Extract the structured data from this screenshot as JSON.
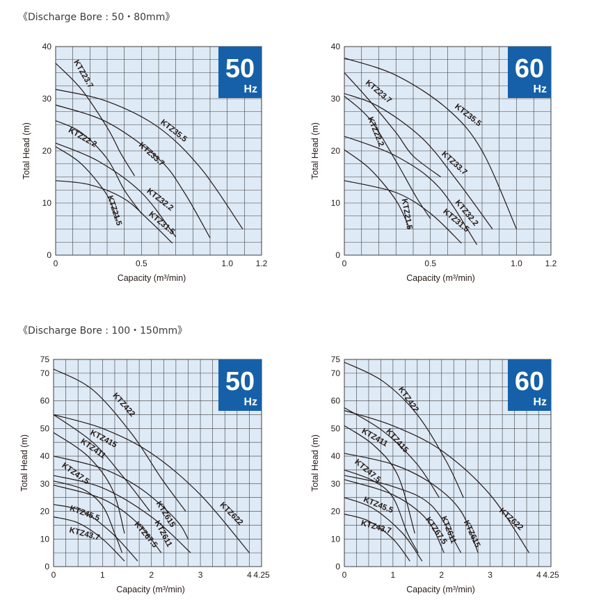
{
  "sections": [
    {
      "title": "《Discharge Bore : 50・80mm》"
    },
    {
      "title": "《Discharge Bore : 100・150mm》"
    }
  ],
  "colors": {
    "plot_bg": "#deeaf6",
    "grid": "#3c3c3c",
    "badge": "#1560a8",
    "curve": "#231815"
  },
  "chart_data": [
    {
      "type": "line",
      "badge": {
        "value": "50",
        "unit": "Hz"
      },
      "xlabel": "Capacity (m³/min)",
      "ylabel": "Total Head (m)",
      "xlim": [
        0,
        1.2
      ],
      "ylim": [
        0,
        40
      ],
      "x_ticks": [
        "0",
        "0.5",
        "1.0",
        "1.2"
      ],
      "x_tick_values": [
        0,
        0.5,
        1.0,
        1.2
      ],
      "y_ticks": [
        "0",
        "10",
        "20",
        "30",
        "40"
      ],
      "y_tick_values": [
        0,
        10,
        20,
        30,
        40
      ],
      "x_grid_step": 0.1,
      "y_grid_step": 2.5,
      "series": [
        {
          "name": "KTZ23.7",
          "points": [
            [
              0,
              36.8
            ],
            [
              0.15,
              31.8
            ],
            [
              0.3,
              24.5
            ],
            [
              0.38,
              19.5
            ],
            [
              0.46,
              15.2
            ]
          ],
          "label_at": [
            0.15,
            34.5
          ],
          "label_angle": 60
        },
        {
          "name": "KTZ35.5",
          "points": [
            [
              0,
              31.8
            ],
            [
              0.3,
              29.5
            ],
            [
              0.6,
              24.5
            ],
            [
              0.85,
              16.5
            ],
            [
              1.09,
              5.0
            ]
          ],
          "label_at": [
            0.68,
            23.5
          ],
          "label_angle": 38
        },
        {
          "name": "KTZ33.7",
          "points": [
            [
              0,
              28.8
            ],
            [
              0.3,
              25.5
            ],
            [
              0.6,
              18.5
            ],
            [
              0.75,
              12.0
            ],
            [
              0.9,
              3.3
            ]
          ],
          "label_at": [
            0.55,
            19.0
          ],
          "label_angle": 42
        },
        {
          "name": "KTZ22.2",
          "points": [
            [
              0,
              25.8
            ],
            [
              0.15,
              23.5
            ],
            [
              0.3,
              18.5
            ],
            [
              0.4,
              12.5
            ],
            [
              0.5,
              8.0
            ]
          ],
          "label_at": [
            0.15,
            22.2
          ],
          "label_angle": 30
        },
        {
          "name": "KTZ32.2",
          "points": [
            [
              0,
              21.5
            ],
            [
              0.25,
              18.0
            ],
            [
              0.5,
              12.0
            ],
            [
              0.7,
              3.5
            ]
          ],
          "label_at": [
            0.6,
            10.3
          ],
          "label_angle": 38
        },
        {
          "name": "KTZ21.5",
          "points": [
            [
              0,
              20.8
            ],
            [
              0.15,
              17.5
            ],
            [
              0.3,
              11.5
            ],
            [
              0.36,
              6.5
            ]
          ],
          "label_at": [
            0.33,
            8.4
          ],
          "label_angle": 72
        },
        {
          "name": "KTZ31.5",
          "points": [
            [
              0,
              14.3
            ],
            [
              0.2,
              13.5
            ],
            [
              0.4,
              10.8
            ],
            [
              0.55,
              6.5
            ],
            [
              0.68,
              2.3
            ]
          ],
          "label_at": [
            0.61,
            5.8
          ],
          "label_angle": 40
        }
      ]
    },
    {
      "type": "line",
      "badge": {
        "value": "60",
        "unit": "Hz"
      },
      "xlabel": "Capacity (m³/min)",
      "ylabel": "Total Head (m)",
      "xlim": [
        0,
        1.2
      ],
      "ylim": [
        0,
        40
      ],
      "x_ticks": [
        "0",
        "0.5",
        "1.0",
        "1.2"
      ],
      "x_tick_values": [
        0,
        0.5,
        1.0,
        1.2
      ],
      "y_ticks": [
        "0",
        "10",
        "20",
        "30",
        "40"
      ],
      "y_tick_values": [
        0,
        10,
        20,
        30,
        40
      ],
      "x_grid_step": 0.1,
      "y_grid_step": 2.5,
      "series": [
        {
          "name": "KTZ35.5",
          "points": [
            [
              0,
              37.8
            ],
            [
              0.3,
              34.5
            ],
            [
              0.6,
              28.0
            ],
            [
              0.8,
              20.0
            ],
            [
              1.0,
              5.0
            ]
          ],
          "label_at": [
            0.71,
            26.5
          ],
          "label_angle": 38
        },
        {
          "name": "KTZ23.7",
          "points": [
            [
              0,
              35.0
            ],
            [
              0.15,
              29.5
            ],
            [
              0.3,
              23.5
            ],
            [
              0.4,
              19.0
            ],
            [
              0.56,
              15.0
            ]
          ],
          "label_at": [
            0.19,
            31.0
          ],
          "label_angle": 40
        },
        {
          "name": "KTZ33.7",
          "points": [
            [
              0,
              31.0
            ],
            [
              0.2,
              28.5
            ],
            [
              0.45,
              22.5
            ],
            [
              0.65,
              14.5
            ],
            [
              0.86,
              5.0
            ]
          ],
          "label_at": [
            0.63,
            17.3
          ],
          "label_angle": 42
        },
        {
          "name": "KTZ22.2",
          "points": [
            [
              0,
              30.5
            ],
            [
              0.15,
              26.0
            ],
            [
              0.3,
              18.0
            ],
            [
              0.42,
              11.0
            ],
            [
              0.5,
              7.0
            ]
          ],
          "label_at": [
            0.17,
            23.5
          ],
          "label_angle": 68
        },
        {
          "name": "KTZ32.2",
          "points": [
            [
              0,
              22.8
            ],
            [
              0.3,
              19.0
            ],
            [
              0.55,
              13.0
            ],
            [
              0.77,
              2.0
            ]
          ],
          "label_at": [
            0.7,
            7.8
          ],
          "label_angle": 50
        },
        {
          "name": "KTZ21.5",
          "points": [
            [
              0,
              20.2
            ],
            [
              0.15,
              16.5
            ],
            [
              0.3,
              10.5
            ],
            [
              0.38,
              5.0
            ]
          ],
          "label_at": [
            0.35,
            7.8
          ],
          "label_angle": 80
        },
        {
          "name": "KTZ31.5",
          "points": [
            [
              0,
              14.3
            ],
            [
              0.3,
              12.0
            ],
            [
              0.5,
              8.0
            ],
            [
              0.68,
              2.3
            ]
          ],
          "label_at": [
            0.64,
            6.3
          ],
          "label_angle": 40
        }
      ]
    },
    {
      "type": "line",
      "badge": {
        "value": "50",
        "unit": "Hz"
      },
      "xlabel": "Capacity (m³/min)",
      "ylabel": "Total Head (m)",
      "xlim": [
        0,
        4.25
      ],
      "ylim": [
        0,
        75
      ],
      "x_ticks": [
        "0",
        "1",
        "2",
        "3",
        "4",
        "4.25"
      ],
      "x_tick_values": [
        0,
        1,
        2,
        3,
        4,
        4.25
      ],
      "y_ticks": [
        "0",
        "10",
        "20",
        "30",
        "40",
        "50",
        "60",
        "70",
        "75"
      ],
      "y_tick_values": [
        0,
        10,
        20,
        30,
        40,
        50,
        60,
        70,
        75
      ],
      "x_grid_step": 0.25,
      "y_grid_step": 5,
      "series": [
        {
          "name": "KTZ422",
          "points": [
            [
              0,
              71.5
            ],
            [
              0.8,
              64.0
            ],
            [
              1.6,
              48.0
            ],
            [
              2.2,
              32.0
            ],
            [
              2.7,
              20.0
            ]
          ],
          "label_at": [
            1.4,
            58.0
          ],
          "label_angle": 48
        },
        {
          "name": "KTZ622",
          "points": [
            [
              0,
              55.0
            ],
            [
              1.0,
              50.0
            ],
            [
              2.0,
              41.0
            ],
            [
              3.0,
              26.0
            ],
            [
              4.0,
              5.0
            ]
          ],
          "label_at": [
            3.6,
            18.5
          ],
          "label_angle": 45
        },
        {
          "name": "KTZ415",
          "points": [
            [
              0,
              55.0
            ],
            [
              0.8,
              45.0
            ],
            [
              1.4,
              33.0
            ],
            [
              1.97,
              20.0
            ]
          ],
          "label_at": [
            1.0,
            45.5
          ],
          "label_angle": 28
        },
        {
          "name": "KTZ615",
          "points": [
            [
              0,
              40.0
            ],
            [
              1.0,
              35.5
            ],
            [
              1.8,
              28.0
            ],
            [
              2.5,
              17.0
            ],
            [
              2.75,
              10.0
            ]
          ],
          "label_at": [
            2.25,
            18.5
          ],
          "label_angle": 58
        },
        {
          "name": "KTZ411",
          "points": [
            [
              0,
              48.5
            ],
            [
              0.7,
              40.0
            ],
            [
              1.2,
              28.0
            ],
            [
              1.45,
              12.0
            ]
          ],
          "label_at": [
            0.78,
            42.0
          ],
          "label_angle": 35
        },
        {
          "name": "KTZ611",
          "points": [
            [
              0,
              33.0
            ],
            [
              1.0,
              28.5
            ],
            [
              2.0,
              18.0
            ],
            [
              2.8,
              5.0
            ]
          ],
          "label_at": [
            2.2,
            11.5
          ],
          "label_angle": 62
        },
        {
          "name": "KTZ47.5",
          "points": [
            [
              0,
              31.0
            ],
            [
              0.6,
              28.0
            ],
            [
              1.0,
              22.0
            ],
            [
              1.25,
              12.0
            ],
            [
              1.4,
              5.0
            ]
          ],
          "label_at": [
            0.42,
            33.0
          ],
          "label_angle": 35
        },
        {
          "name": "KTZ67.5",
          "points": [
            [
              0,
              29.5
            ],
            [
              1.0,
              24.5
            ],
            [
              1.7,
              16.0
            ],
            [
              2.2,
              5.0
            ]
          ],
          "label_at": [
            1.85,
            11.0
          ],
          "label_angle": 50
        },
        {
          "name": "KTZ45.5",
          "points": [
            [
              0,
              22.5
            ],
            [
              0.6,
              20.0
            ],
            [
              1.2,
              12.0
            ],
            [
              1.72,
              2.0
            ]
          ],
          "label_at": [
            0.62,
            18.5
          ],
          "label_angle": 20
        },
        {
          "name": "KTZ43.7",
          "points": [
            [
              0,
              18.0
            ],
            [
              0.5,
              15.8
            ],
            [
              1.0,
              10.0
            ],
            [
              1.45,
              2.0
            ]
          ],
          "label_at": [
            0.62,
            11.0
          ],
          "label_angle": 15
        }
      ]
    },
    {
      "type": "line",
      "badge": {
        "value": "60",
        "unit": "Hz"
      },
      "xlabel": "Capacity (m³/min)",
      "ylabel": "Total Head (m)",
      "xlim": [
        0,
        4.25
      ],
      "ylim": [
        0,
        75
      ],
      "x_ticks": [
        "0",
        "1",
        "2",
        "3",
        "4",
        "4.25"
      ],
      "x_tick_values": [
        0,
        1,
        2,
        3,
        4,
        4.25
      ],
      "y_ticks": [
        "0",
        "10",
        "20",
        "30",
        "40",
        "50",
        "60",
        "70",
        "75"
      ],
      "y_tick_values": [
        0,
        10,
        20,
        30,
        40,
        50,
        60,
        70,
        75
      ],
      "x_grid_step": 0.25,
      "y_grid_step": 5,
      "series": [
        {
          "name": "KTZ422",
          "points": [
            [
              0,
              74.0
            ],
            [
              0.8,
              67.0
            ],
            [
              1.5,
              55.0
            ],
            [
              2.1,
              38.0
            ],
            [
              2.45,
              25.0
            ]
          ],
          "label_at": [
            1.28,
            60.0
          ],
          "label_angle": 55
        },
        {
          "name": "KTZ622",
          "points": [
            [
              0,
              56.5
            ],
            [
              1.0,
              51.0
            ],
            [
              2.0,
              42.0
            ],
            [
              3.0,
              26.0
            ],
            [
              3.8,
              5.0
            ]
          ],
          "label_at": [
            3.4,
            16.5
          ],
          "label_angle": 42
        },
        {
          "name": "KTZ415",
          "points": [
            [
              0,
              57.5
            ],
            [
              0.8,
              49.0
            ],
            [
              1.5,
              37.0
            ],
            [
              1.95,
              25.0
            ]
          ],
          "label_at": [
            1.05,
            45.0
          ],
          "label_angle": 48
        },
        {
          "name": "KTZ615",
          "points": [
            [
              0,
              41.0
            ],
            [
              1.0,
              37.0
            ],
            [
              1.8,
              30.0
            ],
            [
              2.4,
              20.0
            ],
            [
              2.75,
              5.0
            ]
          ],
          "label_at": [
            2.58,
            11.5
          ],
          "label_angle": 65
        },
        {
          "name": "KTZ411",
          "points": [
            [
              0,
              51.0
            ],
            [
              0.6,
              44.0
            ],
            [
              1.1,
              33.0
            ],
            [
              1.45,
              12.0
            ]
          ],
          "label_at": [
            0.6,
            46.0
          ],
          "label_angle": 30
        },
        {
          "name": "KTZ611",
          "points": [
            [
              0,
              33.0
            ],
            [
              1.0,
              29.0
            ],
            [
              1.8,
              22.0
            ],
            [
              2.4,
              5.0
            ]
          ],
          "label_at": [
            2.1,
            13.0
          ],
          "label_angle": 68
        },
        {
          "name": "KTZ47.5",
          "points": [
            [
              0,
              35.0
            ],
            [
              0.6,
              31.0
            ],
            [
              1.0,
              25.0
            ],
            [
              1.3,
              12.0
            ],
            [
              1.52,
              5.0
            ]
          ],
          "label_at": [
            0.45,
            34.0
          ],
          "label_angle": 40
        },
        {
          "name": "KTZ67.5",
          "points": [
            [
              0,
              31.5
            ],
            [
              1.0,
              26.0
            ],
            [
              1.7,
              17.0
            ],
            [
              2.05,
              5.0
            ]
          ],
          "label_at": [
            1.85,
            12.5
          ],
          "label_angle": 55
        },
        {
          "name": "KTZ45.5",
          "points": [
            [
              0,
              25.0
            ],
            [
              0.6,
              21.0
            ],
            [
              1.2,
              12.0
            ],
            [
              1.6,
              2.0
            ]
          ],
          "label_at": [
            0.68,
            21.5
          ],
          "label_angle": 22
        },
        {
          "name": "KTZ43.7",
          "points": [
            [
              0,
              19.0
            ],
            [
              0.5,
              16.5
            ],
            [
              1.0,
              10.0
            ],
            [
              1.35,
              2.0
            ]
          ],
          "label_at": [
            0.64,
            13.5
          ],
          "label_angle": 16
        }
      ]
    }
  ]
}
